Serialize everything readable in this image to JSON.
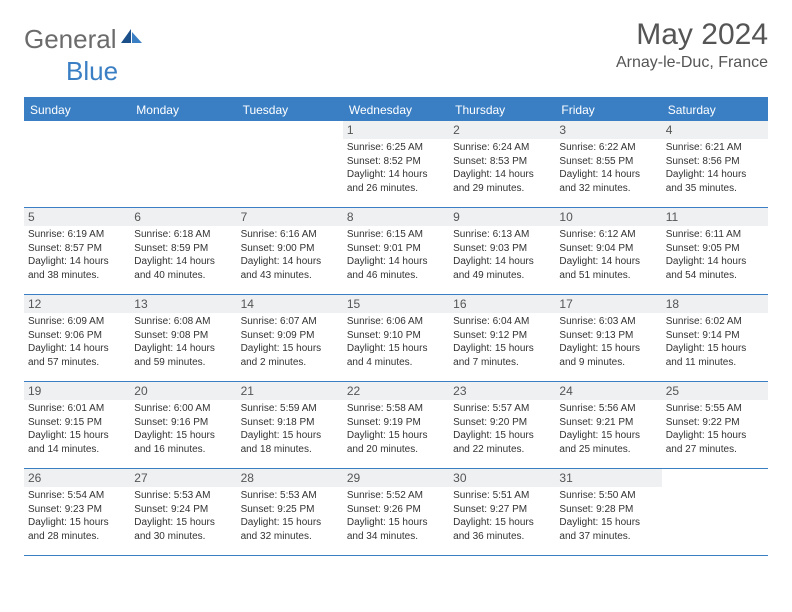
{
  "brand": {
    "part1": "General",
    "part2": "Blue"
  },
  "title": "May 2024",
  "location": "Arnay-le-Duc, France",
  "colors": {
    "accent": "#3a7fc4",
    "header_bg": "#3a7fc4",
    "header_text": "#ffffff",
    "daynum_bg": "#eef0f2",
    "text_muted": "#555555",
    "text_body": "#333333",
    "background": "#ffffff"
  },
  "weekdays": [
    "Sunday",
    "Monday",
    "Tuesday",
    "Wednesday",
    "Thursday",
    "Friday",
    "Saturday"
  ],
  "weeks": [
    [
      {
        "n": "",
        "sr": "",
        "ss": "",
        "dl": ""
      },
      {
        "n": "",
        "sr": "",
        "ss": "",
        "dl": ""
      },
      {
        "n": "",
        "sr": "",
        "ss": "",
        "dl": ""
      },
      {
        "n": "1",
        "sr": "Sunrise: 6:25 AM",
        "ss": "Sunset: 8:52 PM",
        "dl": "Daylight: 14 hours and 26 minutes."
      },
      {
        "n": "2",
        "sr": "Sunrise: 6:24 AM",
        "ss": "Sunset: 8:53 PM",
        "dl": "Daylight: 14 hours and 29 minutes."
      },
      {
        "n": "3",
        "sr": "Sunrise: 6:22 AM",
        "ss": "Sunset: 8:55 PM",
        "dl": "Daylight: 14 hours and 32 minutes."
      },
      {
        "n": "4",
        "sr": "Sunrise: 6:21 AM",
        "ss": "Sunset: 8:56 PM",
        "dl": "Daylight: 14 hours and 35 minutes."
      }
    ],
    [
      {
        "n": "5",
        "sr": "Sunrise: 6:19 AM",
        "ss": "Sunset: 8:57 PM",
        "dl": "Daylight: 14 hours and 38 minutes."
      },
      {
        "n": "6",
        "sr": "Sunrise: 6:18 AM",
        "ss": "Sunset: 8:59 PM",
        "dl": "Daylight: 14 hours and 40 minutes."
      },
      {
        "n": "7",
        "sr": "Sunrise: 6:16 AM",
        "ss": "Sunset: 9:00 PM",
        "dl": "Daylight: 14 hours and 43 minutes."
      },
      {
        "n": "8",
        "sr": "Sunrise: 6:15 AM",
        "ss": "Sunset: 9:01 PM",
        "dl": "Daylight: 14 hours and 46 minutes."
      },
      {
        "n": "9",
        "sr": "Sunrise: 6:13 AM",
        "ss": "Sunset: 9:03 PM",
        "dl": "Daylight: 14 hours and 49 minutes."
      },
      {
        "n": "10",
        "sr": "Sunrise: 6:12 AM",
        "ss": "Sunset: 9:04 PM",
        "dl": "Daylight: 14 hours and 51 minutes."
      },
      {
        "n": "11",
        "sr": "Sunrise: 6:11 AM",
        "ss": "Sunset: 9:05 PM",
        "dl": "Daylight: 14 hours and 54 minutes."
      }
    ],
    [
      {
        "n": "12",
        "sr": "Sunrise: 6:09 AM",
        "ss": "Sunset: 9:06 PM",
        "dl": "Daylight: 14 hours and 57 minutes."
      },
      {
        "n": "13",
        "sr": "Sunrise: 6:08 AM",
        "ss": "Sunset: 9:08 PM",
        "dl": "Daylight: 14 hours and 59 minutes."
      },
      {
        "n": "14",
        "sr": "Sunrise: 6:07 AM",
        "ss": "Sunset: 9:09 PM",
        "dl": "Daylight: 15 hours and 2 minutes."
      },
      {
        "n": "15",
        "sr": "Sunrise: 6:06 AM",
        "ss": "Sunset: 9:10 PM",
        "dl": "Daylight: 15 hours and 4 minutes."
      },
      {
        "n": "16",
        "sr": "Sunrise: 6:04 AM",
        "ss": "Sunset: 9:12 PM",
        "dl": "Daylight: 15 hours and 7 minutes."
      },
      {
        "n": "17",
        "sr": "Sunrise: 6:03 AM",
        "ss": "Sunset: 9:13 PM",
        "dl": "Daylight: 15 hours and 9 minutes."
      },
      {
        "n": "18",
        "sr": "Sunrise: 6:02 AM",
        "ss": "Sunset: 9:14 PM",
        "dl": "Daylight: 15 hours and 11 minutes."
      }
    ],
    [
      {
        "n": "19",
        "sr": "Sunrise: 6:01 AM",
        "ss": "Sunset: 9:15 PM",
        "dl": "Daylight: 15 hours and 14 minutes."
      },
      {
        "n": "20",
        "sr": "Sunrise: 6:00 AM",
        "ss": "Sunset: 9:16 PM",
        "dl": "Daylight: 15 hours and 16 minutes."
      },
      {
        "n": "21",
        "sr": "Sunrise: 5:59 AM",
        "ss": "Sunset: 9:18 PM",
        "dl": "Daylight: 15 hours and 18 minutes."
      },
      {
        "n": "22",
        "sr": "Sunrise: 5:58 AM",
        "ss": "Sunset: 9:19 PM",
        "dl": "Daylight: 15 hours and 20 minutes."
      },
      {
        "n": "23",
        "sr": "Sunrise: 5:57 AM",
        "ss": "Sunset: 9:20 PM",
        "dl": "Daylight: 15 hours and 22 minutes."
      },
      {
        "n": "24",
        "sr": "Sunrise: 5:56 AM",
        "ss": "Sunset: 9:21 PM",
        "dl": "Daylight: 15 hours and 25 minutes."
      },
      {
        "n": "25",
        "sr": "Sunrise: 5:55 AM",
        "ss": "Sunset: 9:22 PM",
        "dl": "Daylight: 15 hours and 27 minutes."
      }
    ],
    [
      {
        "n": "26",
        "sr": "Sunrise: 5:54 AM",
        "ss": "Sunset: 9:23 PM",
        "dl": "Daylight: 15 hours and 28 minutes."
      },
      {
        "n": "27",
        "sr": "Sunrise: 5:53 AM",
        "ss": "Sunset: 9:24 PM",
        "dl": "Daylight: 15 hours and 30 minutes."
      },
      {
        "n": "28",
        "sr": "Sunrise: 5:53 AM",
        "ss": "Sunset: 9:25 PM",
        "dl": "Daylight: 15 hours and 32 minutes."
      },
      {
        "n": "29",
        "sr": "Sunrise: 5:52 AM",
        "ss": "Sunset: 9:26 PM",
        "dl": "Daylight: 15 hours and 34 minutes."
      },
      {
        "n": "30",
        "sr": "Sunrise: 5:51 AM",
        "ss": "Sunset: 9:27 PM",
        "dl": "Daylight: 15 hours and 36 minutes."
      },
      {
        "n": "31",
        "sr": "Sunrise: 5:50 AM",
        "ss": "Sunset: 9:28 PM",
        "dl": "Daylight: 15 hours and 37 minutes."
      },
      {
        "n": "",
        "sr": "",
        "ss": "",
        "dl": ""
      }
    ]
  ]
}
